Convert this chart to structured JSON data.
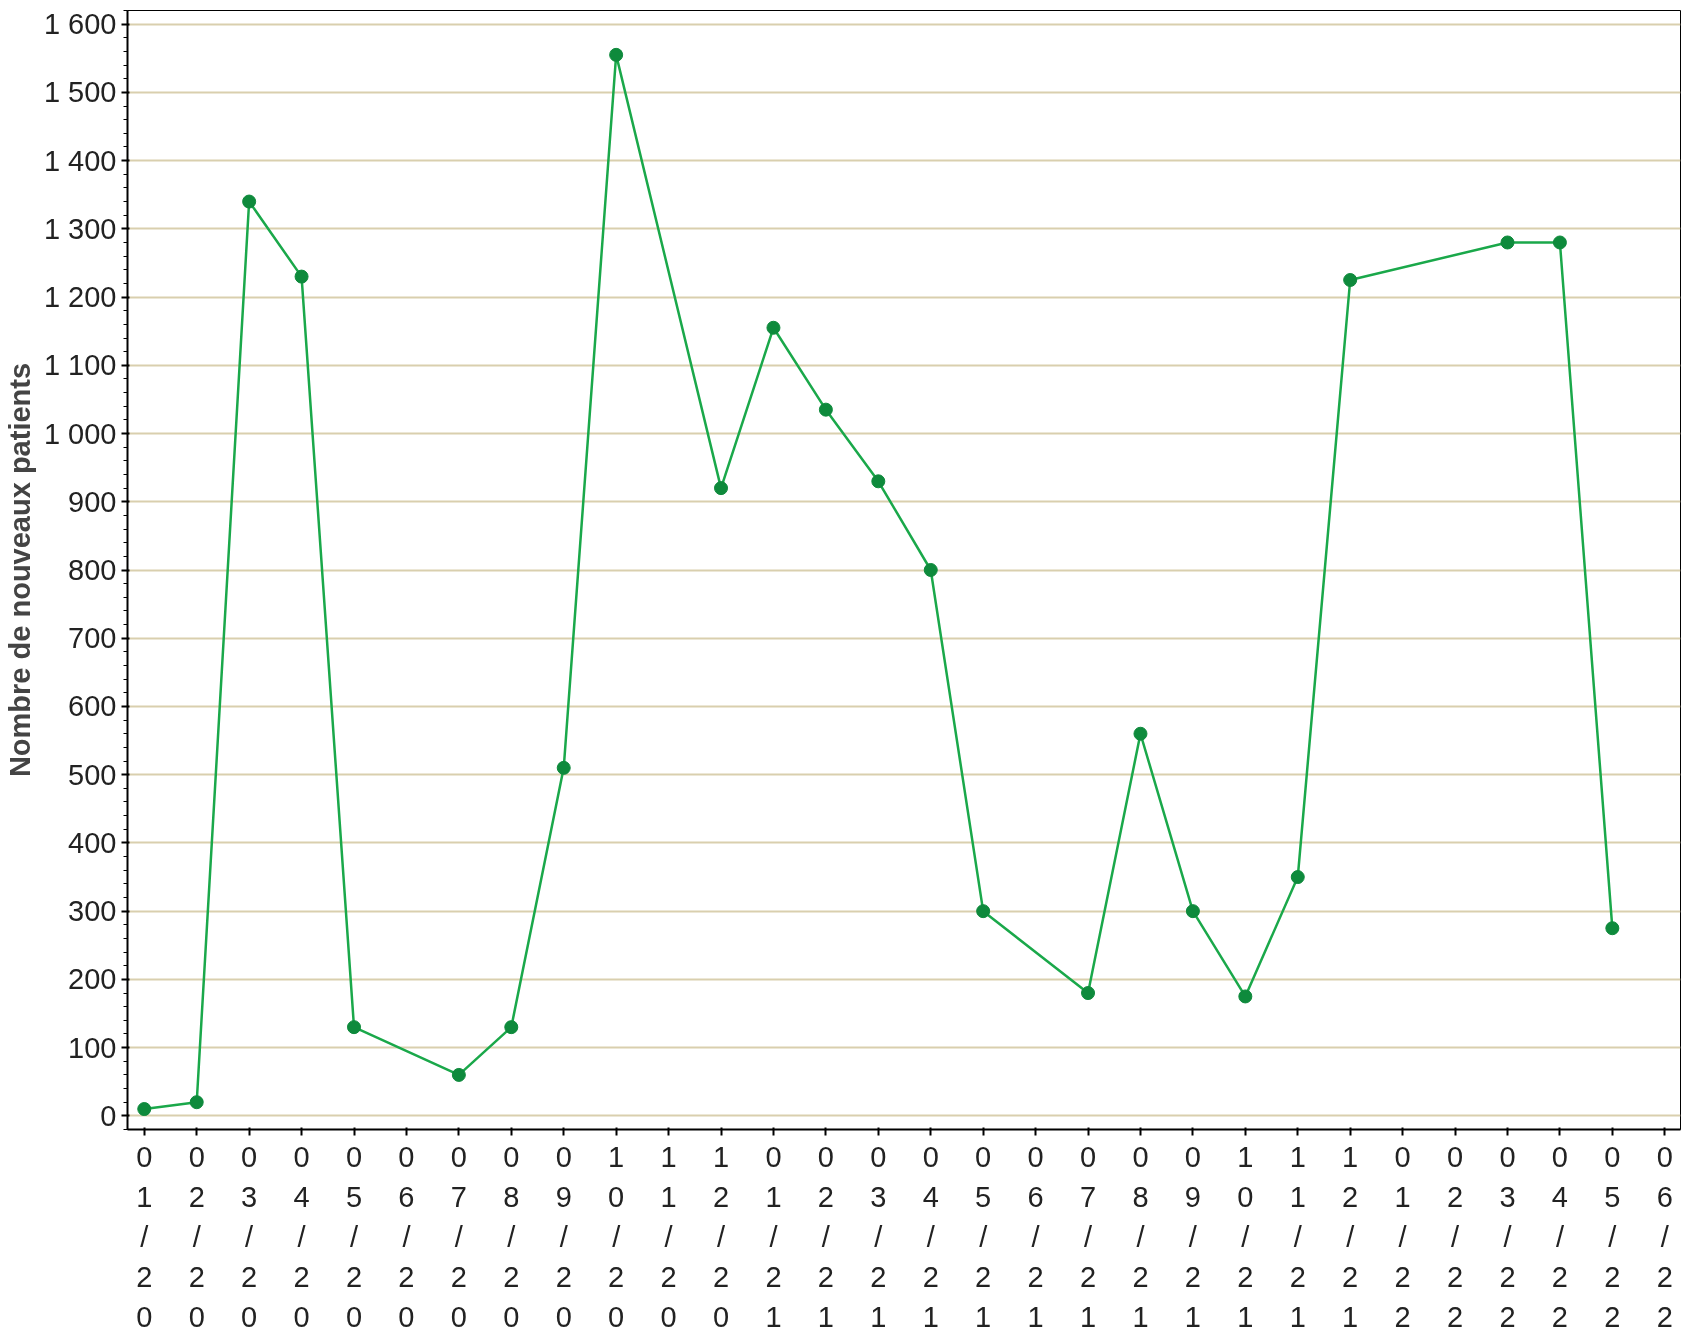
{
  "chart_data": {
    "type": "line",
    "ylabel": "Nombre de nouveaux patients",
    "categories": [
      "01/20",
      "02/20",
      "03/20",
      "04/20",
      "05/20",
      "06/20",
      "07/20",
      "08/20",
      "09/20",
      "10/20",
      "11/20",
      "12/20",
      "01/21",
      "02/21",
      "03/21",
      "04/21",
      "05/21",
      "06/21",
      "07/21",
      "08/21",
      "09/21",
      "10/21",
      "11/21",
      "12/21",
      "01/22",
      "02/22",
      "03/22",
      "04/22",
      "05/22",
      "06/22"
    ],
    "series": [
      {
        "color": "#1aa84a",
        "values": [
          10,
          20,
          1340,
          1230,
          130,
          null,
          60,
          130,
          510,
          1555,
          null,
          920,
          1155,
          1035,
          930,
          800,
          300,
          null,
          180,
          560,
          300,
          175,
          350,
          1225,
          null,
          null,
          1280,
          1280,
          275,
          null
        ]
      }
    ],
    "ylim": [
      -20,
      1620
    ],
    "yticks": [
      0,
      100,
      200,
      300,
      400,
      500,
      600,
      700,
      800,
      900,
      {
        "value": 1000,
        "label": "1 000"
      },
      {
        "value": 1100,
        "label": "1 100"
      },
      {
        "value": 1200,
        "label": "1 200"
      },
      {
        "value": 1300,
        "label": "1 300"
      },
      {
        "value": 1400,
        "label": "1 400"
      },
      {
        "value": 1500,
        "label": "1 500"
      },
      {
        "value": 1600,
        "label": "1 600"
      }
    ],
    "grid": "y",
    "marker": "circle",
    "line_style": "solid"
  }
}
